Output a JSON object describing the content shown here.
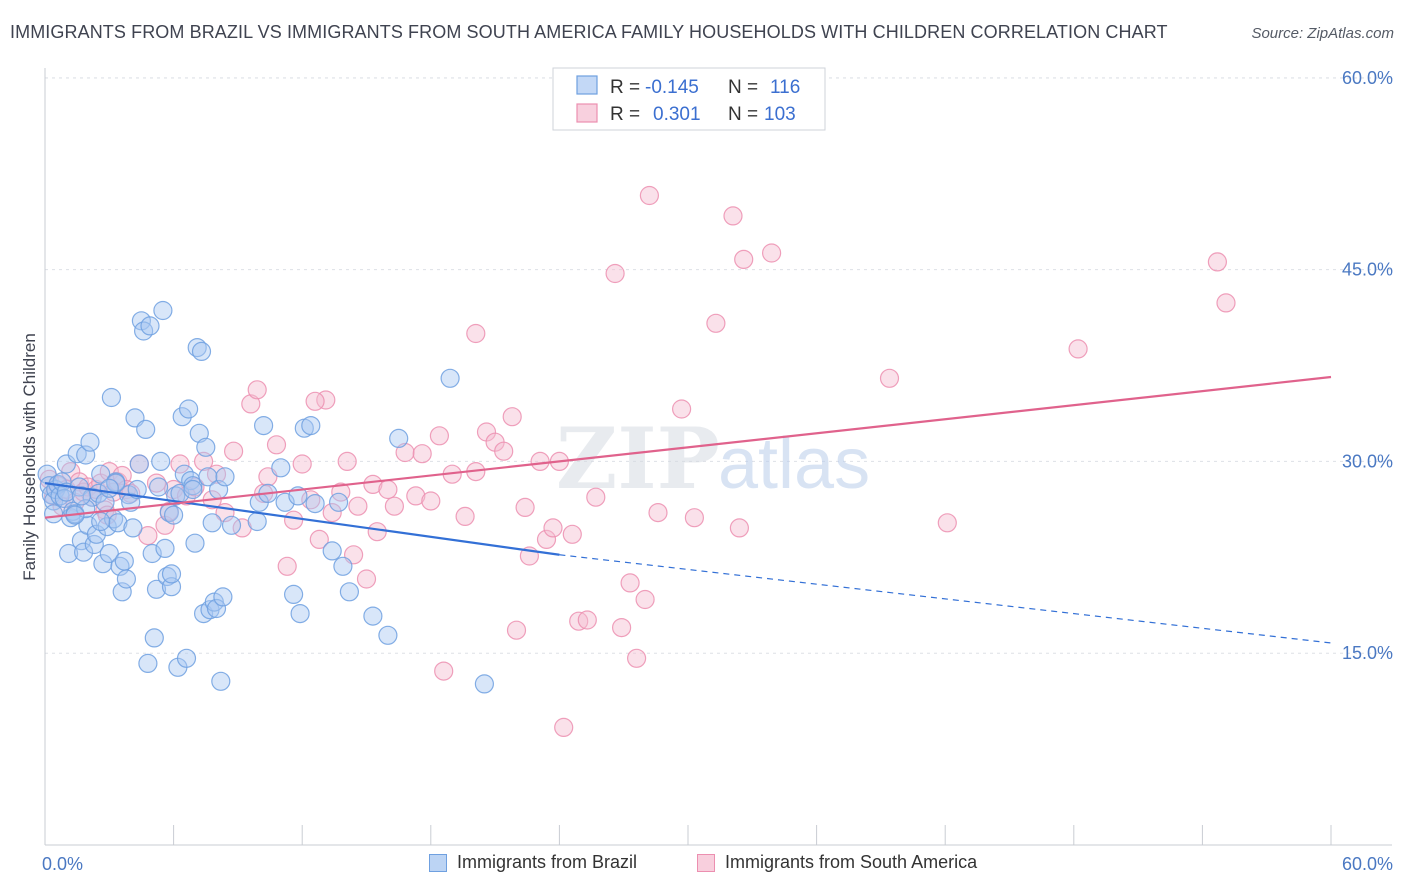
{
  "title": "IMMIGRANTS FROM BRAZIL VS IMMIGRANTS FROM SOUTH AMERICA FAMILY HOUSEHOLDS WITH CHILDREN CORRELATION CHART",
  "source": "Source: ZipAtlas.com",
  "watermark": {
    "zip": "ZIP",
    "atlas": "atlas"
  },
  "colors": {
    "blue": "#6fa0e0",
    "blue_fill": "#a9c8f2",
    "blue_line": "#3370d6",
    "pink": "#ec8fb0",
    "pink_fill": "#f5bcd0",
    "pink_line": "#e0628c",
    "tick": "#4a78c2"
  },
  "legend": {
    "series": [
      {
        "r_label": "R = ",
        "r_value": "-0.145",
        "n_label": "N = ",
        "n_value": "116"
      },
      {
        "r_label": "R = ",
        "r_value": "0.301",
        "n_label": "N = ",
        "n_value": "103"
      }
    ]
  },
  "bottom_legend": [
    "Immigrants from Brazil",
    "Immigrants from South America"
  ],
  "chart_data": {
    "type": "scatter",
    "title": "IMMIGRANTS FROM BRAZIL VS IMMIGRANTS FROM SOUTH AMERICA FAMILY HOUSEHOLDS WITH CHILDREN CORRELATION CHART",
    "xlabel": "",
    "ylabel": "Family Households with Children",
    "xlim": [
      0,
      60
    ],
    "ylim": [
      0,
      63
    ],
    "x_tick_labels": [
      "0.0%",
      "60.0%"
    ],
    "y_ticks": [
      15,
      30,
      45,
      60
    ],
    "y_tick_labels": [
      "15.0%",
      "30.0%",
      "45.0%",
      "60.0%"
    ],
    "grid": true,
    "series": [
      {
        "name": "Immigrants from Brazil",
        "r": -0.145,
        "n": 116,
        "trend": {
          "x": [
            0,
            24
          ],
          "y": [
            28.3,
            22.7
          ],
          "dashed_to": [
            60,
            15.8
          ]
        },
        "points": [
          [
            0.1,
            29.0
          ],
          [
            0.2,
            28.1
          ],
          [
            0.3,
            27.4
          ],
          [
            0.4,
            26.9
          ],
          [
            0.5,
            27.8
          ],
          [
            0.6,
            28.2
          ],
          [
            0.7,
            27.3
          ],
          [
            0.8,
            28.4
          ],
          [
            0.9,
            27.1
          ],
          [
            1.0,
            27.6
          ],
          [
            1.0,
            29.8
          ],
          [
            1.1,
            22.8
          ],
          [
            1.2,
            25.6
          ],
          [
            1.3,
            26.1
          ],
          [
            1.4,
            25.9
          ],
          [
            1.5,
            30.6
          ],
          [
            1.6,
            28.0
          ],
          [
            1.7,
            23.8
          ],
          [
            1.8,
            22.9
          ],
          [
            1.9,
            30.5
          ],
          [
            2.0,
            25.0
          ],
          [
            2.1,
            31.5
          ],
          [
            2.2,
            27.2
          ],
          [
            2.3,
            23.5
          ],
          [
            2.4,
            24.3
          ],
          [
            2.5,
            27.5
          ],
          [
            2.6,
            29.0
          ],
          [
            2.7,
            22.0
          ],
          [
            2.8,
            26.8
          ],
          [
            2.9,
            24.9
          ],
          [
            3.0,
            22.8
          ],
          [
            3.1,
            35.0
          ],
          [
            3.2,
            25.5
          ],
          [
            3.3,
            28.4
          ],
          [
            3.4,
            25.2
          ],
          [
            3.5,
            21.8
          ],
          [
            3.6,
            19.8
          ],
          [
            3.7,
            22.2
          ],
          [
            3.8,
            20.8
          ],
          [
            3.9,
            27.4
          ],
          [
            4.0,
            26.8
          ],
          [
            4.1,
            24.8
          ],
          [
            4.2,
            33.4
          ],
          [
            4.3,
            27.8
          ],
          [
            4.4,
            29.8
          ],
          [
            4.5,
            41.0
          ],
          [
            4.6,
            40.2
          ],
          [
            4.7,
            32.5
          ],
          [
            4.8,
            14.2
          ],
          [
            4.9,
            40.6
          ],
          [
            5.0,
            22.8
          ],
          [
            5.1,
            16.2
          ],
          [
            5.2,
            20.0
          ],
          [
            5.3,
            28.0
          ],
          [
            5.4,
            30.0
          ],
          [
            5.5,
            41.8
          ],
          [
            5.6,
            23.2
          ],
          [
            5.7,
            21.0
          ],
          [
            5.8,
            26.0
          ],
          [
            5.9,
            20.2
          ],
          [
            6.0,
            25.8
          ],
          [
            6.1,
            27.3
          ],
          [
            6.2,
            13.9
          ],
          [
            6.3,
            27.5
          ],
          [
            6.4,
            33.5
          ],
          [
            6.5,
            29.0
          ],
          [
            6.6,
            14.6
          ],
          [
            6.7,
            34.1
          ],
          [
            6.8,
            28.5
          ],
          [
            6.9,
            28.1
          ],
          [
            7.0,
            23.6
          ],
          [
            7.1,
            38.9
          ],
          [
            7.2,
            32.2
          ],
          [
            7.3,
            38.6
          ],
          [
            7.4,
            18.1
          ],
          [
            7.5,
            31.1
          ],
          [
            7.6,
            28.8
          ],
          [
            7.7,
            18.4
          ],
          [
            7.8,
            25.2
          ],
          [
            7.9,
            19.0
          ],
          [
            8.0,
            18.5
          ],
          [
            8.1,
            27.8
          ],
          [
            8.2,
            12.8
          ],
          [
            8.3,
            19.4
          ],
          [
            8.4,
            28.8
          ],
          [
            9.9,
            25.3
          ],
          [
            10.0,
            26.8
          ],
          [
            10.2,
            32.8
          ],
          [
            10.4,
            27.5
          ],
          [
            11.0,
            29.5
          ],
          [
            11.2,
            26.8
          ],
          [
            11.6,
            19.6
          ],
          [
            11.8,
            27.3
          ],
          [
            11.9,
            18.1
          ],
          [
            12.1,
            32.6
          ],
          [
            12.4,
            32.8
          ],
          [
            12.6,
            26.7
          ],
          [
            13.4,
            23.0
          ],
          [
            13.7,
            26.8
          ],
          [
            13.9,
            21.8
          ],
          [
            14.2,
            19.8
          ],
          [
            15.3,
            17.9
          ],
          [
            16.0,
            16.4
          ],
          [
            16.5,
            31.8
          ],
          [
            18.9,
            36.5
          ],
          [
            20.5,
            12.6
          ],
          [
            1.9,
            26.3
          ],
          [
            2.6,
            25.3
          ],
          [
            3.3,
            28.3
          ],
          [
            6.9,
            27.8
          ],
          [
            0.4,
            25.9
          ],
          [
            1.4,
            25.8
          ],
          [
            8.7,
            25.0
          ],
          [
            5.9,
            21.2
          ],
          [
            1.7,
            27.3
          ],
          [
            3.0,
            27.9
          ]
        ]
      },
      {
        "name": "Immigrants from South America",
        "r": 0.301,
        "n": 103,
        "trend": {
          "x": [
            0,
            60
          ],
          "y": [
            25.6,
            36.6
          ]
        },
        "points": [
          [
            0.2,
            28.6
          ],
          [
            0.4,
            27.3
          ],
          [
            0.6,
            28.1
          ],
          [
            0.8,
            26.5
          ],
          [
            1.0,
            27.8
          ],
          [
            1.2,
            29.2
          ],
          [
            1.4,
            26.8
          ],
          [
            1.6,
            28.4
          ],
          [
            1.8,
            27.6
          ],
          [
            2.0,
            28.0
          ],
          [
            2.2,
            27.2
          ],
          [
            2.4,
            27.8
          ],
          [
            2.6,
            28.3
          ],
          [
            2.8,
            26.2
          ],
          [
            3.0,
            29.2
          ],
          [
            3.2,
            27.6
          ],
          [
            3.4,
            28.4
          ],
          [
            3.6,
            28.9
          ],
          [
            3.8,
            27.8
          ],
          [
            4.0,
            27.5
          ],
          [
            4.4,
            29.8
          ],
          [
            4.8,
            24.2
          ],
          [
            5.2,
            28.3
          ],
          [
            5.6,
            25.0
          ],
          [
            6.0,
            27.8
          ],
          [
            6.3,
            29.8
          ],
          [
            6.6,
            27.3
          ],
          [
            7.0,
            28.0
          ],
          [
            7.4,
            30.0
          ],
          [
            7.8,
            27.0
          ],
          [
            8.0,
            29.0
          ],
          [
            8.4,
            26.0
          ],
          [
            8.8,
            30.8
          ],
          [
            9.2,
            24.8
          ],
          [
            9.6,
            34.5
          ],
          [
            9.9,
            35.6
          ],
          [
            10.2,
            27.5
          ],
          [
            10.4,
            28.8
          ],
          [
            10.8,
            31.3
          ],
          [
            11.3,
            21.8
          ],
          [
            11.6,
            25.4
          ],
          [
            12.0,
            29.8
          ],
          [
            12.4,
            27.0
          ],
          [
            12.8,
            23.9
          ],
          [
            13.1,
            34.8
          ],
          [
            13.4,
            26.0
          ],
          [
            13.8,
            27.6
          ],
          [
            14.1,
            30.0
          ],
          [
            14.4,
            22.7
          ],
          [
            14.6,
            26.5
          ],
          [
            15.0,
            20.8
          ],
          [
            15.3,
            28.2
          ],
          [
            15.5,
            24.5
          ],
          [
            16.0,
            27.8
          ],
          [
            16.3,
            26.5
          ],
          [
            16.8,
            30.7
          ],
          [
            17.3,
            27.3
          ],
          [
            17.6,
            30.6
          ],
          [
            18.0,
            26.9
          ],
          [
            18.4,
            32.0
          ],
          [
            18.6,
            13.6
          ],
          [
            19.0,
            29.0
          ],
          [
            19.6,
            25.7
          ],
          [
            20.1,
            29.2
          ],
          [
            20.6,
            32.3
          ],
          [
            21.0,
            31.5
          ],
          [
            21.4,
            30.8
          ],
          [
            21.8,
            33.5
          ],
          [
            22.0,
            16.8
          ],
          [
            22.4,
            26.4
          ],
          [
            22.6,
            22.6
          ],
          [
            23.1,
            30.0
          ],
          [
            23.4,
            23.9
          ],
          [
            23.7,
            24.8
          ],
          [
            24.0,
            30.0
          ],
          [
            24.2,
            9.2
          ],
          [
            24.6,
            24.3
          ],
          [
            24.9,
            17.5
          ],
          [
            25.3,
            17.6
          ],
          [
            25.7,
            27.2
          ],
          [
            26.6,
            44.7
          ],
          [
            26.9,
            17.0
          ],
          [
            27.3,
            20.5
          ],
          [
            27.6,
            14.6
          ],
          [
            28.0,
            19.2
          ],
          [
            28.2,
            50.8
          ],
          [
            28.6,
            26.0
          ],
          [
            29.7,
            34.1
          ],
          [
            30.3,
            25.6
          ],
          [
            31.3,
            40.8
          ],
          [
            32.1,
            49.2
          ],
          [
            32.6,
            45.8
          ],
          [
            32.4,
            24.8
          ],
          [
            33.9,
            46.3
          ],
          [
            20.1,
            40.0
          ],
          [
            39.4,
            36.5
          ],
          [
            42.1,
            25.2
          ],
          [
            48.2,
            38.8
          ],
          [
            54.7,
            45.6
          ],
          [
            55.1,
            42.4
          ],
          [
            5.8,
            26.1
          ],
          [
            12.6,
            34.7
          ],
          [
            2.9,
            25.8
          ]
        ]
      }
    ]
  }
}
